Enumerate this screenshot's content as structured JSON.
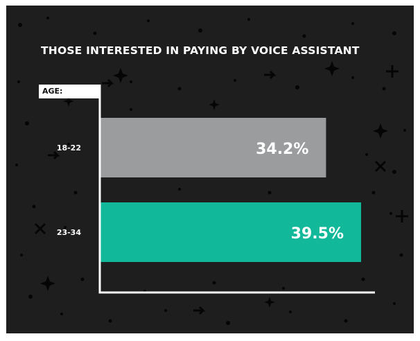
{
  "chart_data": {
    "type": "bar",
    "orientation": "horizontal",
    "title": "THOSE INTERESTED IN PAYING BY VOICE ASSISTANT",
    "axis_title": "AGE:",
    "categories": [
      "18-22",
      "23-34"
    ],
    "values": [
      34.2,
      39.5
    ],
    "value_labels": [
      "34.2%",
      "39.5%"
    ],
    "colors": [
      "#9b9c9e",
      "#11b89a"
    ],
    "xlim": [
      0,
      45
    ],
    "grid": false
  },
  "colors": {
    "background": "#1e1e1e",
    "text": "#ffffff",
    "axis": "#ffffff",
    "decoration": "#000000"
  }
}
